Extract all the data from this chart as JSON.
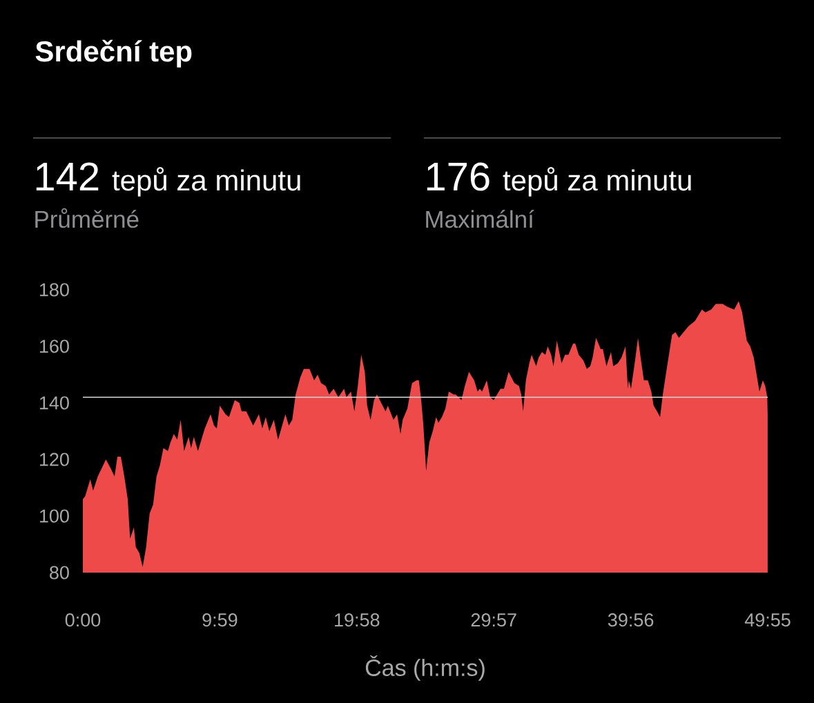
{
  "chart_data": {
    "type": "area",
    "title": "Srdeční tep",
    "annotations": [
      "142",
      "tepů za minutu",
      "Průměrné",
      "176",
      "tepů za minutu",
      "Maximální"
    ],
    "xlabel": "Čas (h:m:s)",
    "xlim": [
      0,
      49.9167
    ],
    "xticks": [
      {
        "value": 0,
        "label": "0:00"
      },
      {
        "value": 9.9833,
        "label": "9:59"
      },
      {
        "value": 19.9667,
        "label": "19:58"
      },
      {
        "value": 29.95,
        "label": "29:57"
      },
      {
        "value": 39.9333,
        "label": "39:56"
      },
      {
        "value": 49.9167,
        "label": "49:55"
      }
    ],
    "ylim": [
      80,
      180
    ],
    "yticks": [
      80,
      100,
      120,
      140,
      160,
      180
    ],
    "ref_lines": [
      {
        "axis": "y",
        "value": 142,
        "color": "#d8d8d8"
      }
    ],
    "series": [
      {
        "color": "#ef4a4a",
        "x": [
          0,
          0.17,
          0.54,
          0.75,
          1.09,
          1.68,
          2.01,
          2.31,
          2.52,
          2.77,
          3.02,
          3.27,
          3.44,
          3.72,
          3.86,
          4.11,
          4.36,
          4.61,
          4.87,
          5.12,
          5.37,
          5.62,
          5.87,
          6.2,
          6.38,
          6.63,
          6.88,
          7.13,
          7.38,
          7.71,
          7.89,
          8.09,
          8.39,
          8.64,
          8.89,
          9.31,
          9.56,
          9.76,
          9.98,
          10.4,
          10.65,
          11.07,
          11.41,
          11.57,
          11.91,
          12.41,
          12.83,
          13.08,
          13.33,
          13.59,
          13.92,
          14.23,
          14.76,
          15.01,
          15.26,
          15.51,
          15.85,
          16.1,
          16.52,
          16.86,
          17.11,
          17.36,
          17.7,
          17.95,
          18.28,
          18.62,
          19.04,
          19.21,
          19.54,
          19.79,
          20.04,
          20.29,
          20.55,
          20.72,
          20.97,
          21.22,
          21.44,
          21.64,
          22.06,
          22.23,
          22.64,
          22.9,
          23.15,
          23.31,
          23.65,
          23.99,
          24.32,
          24.49,
          24.66,
          24.82,
          25.02,
          25.25,
          25.5,
          25.75,
          25.91,
          26.17,
          26.42,
          26.67,
          27.01,
          27.17,
          27.59,
          27.84,
          28.14,
          28.52,
          28.77,
          28.93,
          29.1,
          29.44,
          29.69,
          29.94,
          30.44,
          30.69,
          31.03,
          31.45,
          31.79,
          31.95,
          32.09,
          32.29,
          32.54,
          32.71,
          33.04,
          33.21,
          33.46,
          33.71,
          33.88,
          34.13,
          34.3,
          34.55,
          34.89,
          35.14,
          35.39,
          35.73,
          35.89,
          36.14,
          36.48,
          36.73,
          36.98,
          37.15,
          37.4,
          37.74,
          37.9,
          38.16,
          38.49,
          38.66,
          38.99,
          39.25,
          39.55,
          39.72,
          39.79,
          39.95,
          40.22,
          40.46,
          40.68,
          40.89,
          41.18,
          41.43,
          41.6,
          41.85,
          42.07,
          42.27,
          42.52,
          42.94,
          43.19,
          43.44,
          43.78,
          44.12,
          44.62,
          45.12,
          45.37,
          45.79,
          46.13,
          46.63,
          46.96,
          47.47,
          47.8,
          48.05,
          48.39,
          48.64,
          48.9,
          49.31,
          49.56,
          49.73,
          49.88,
          49.91
        ],
        "values": [
          106,
          107,
          113,
          109,
          114,
          120,
          117,
          114,
          121,
          121,
          114,
          106,
          92,
          96,
          89,
          87,
          82,
          89,
          101,
          104,
          114,
          118,
          124,
          123,
          126,
          129,
          127,
          134,
          123,
          128,
          124,
          128,
          123,
          127,
          131,
          136,
          132,
          131,
          139,
          136,
          135,
          141,
          140,
          137,
          137,
          132,
          136,
          131,
          135,
          130,
          134,
          127,
          136,
          132,
          134,
          143,
          149,
          152,
          152,
          148,
          150,
          147,
          146,
          143,
          145,
          142,
          145,
          142,
          144,
          137,
          146,
          157,
          151,
          139,
          134,
          141,
          143,
          141,
          137,
          139,
          134,
          136,
          129,
          134,
          138,
          147,
          148,
          148,
          141,
          132,
          116,
          126,
          130,
          135,
          133,
          135,
          138,
          144,
          143,
          143,
          141,
          146,
          151,
          148,
          144,
          145,
          144,
          148,
          142,
          141,
          145,
          145,
          151,
          147,
          146,
          143,
          137,
          148,
          154,
          157,
          153,
          156,
          158,
          157,
          160,
          157,
          153,
          162,
          154,
          157,
          157,
          161,
          161,
          157,
          155,
          152,
          153,
          156,
          163,
          159,
          159,
          153,
          158,
          153,
          154,
          156,
          160,
          145,
          148,
          145,
          154,
          163,
          155,
          148,
          148,
          144,
          139,
          137,
          135,
          143,
          151,
          164,
          165,
          163,
          165,
          167,
          169,
          173,
          172,
          173,
          175,
          175,
          174,
          173,
          176,
          172,
          162,
          160,
          156,
          144,
          148,
          146,
          142,
          136
        ]
      }
    ]
  }
}
